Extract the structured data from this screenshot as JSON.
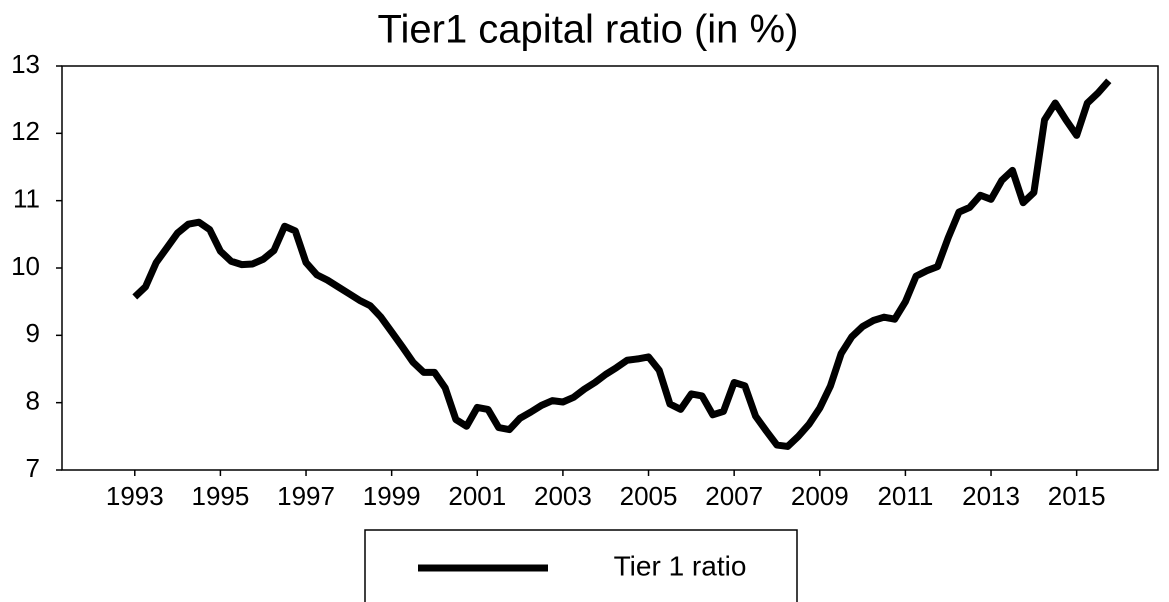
{
  "chart_data": {
    "type": "line",
    "title": "Tier1 capital ratio (in %)",
    "x": [
      1993,
      1993.25,
      1993.5,
      1993.75,
      1994,
      1994.25,
      1994.5,
      1994.75,
      1995,
      1995.25,
      1995.5,
      1995.75,
      1996,
      1996.25,
      1996.5,
      1996.75,
      1997,
      1997.25,
      1997.5,
      1997.75,
      1998,
      1998.25,
      1998.5,
      1998.75,
      1999,
      1999.25,
      1999.5,
      1999.75,
      2000,
      2000.25,
      2000.5,
      2000.75,
      2001,
      2001.25,
      2001.5,
      2001.75,
      2002,
      2002.25,
      2002.5,
      2002.75,
      2003,
      2003.25,
      2003.5,
      2003.75,
      2004,
      2004.25,
      2004.5,
      2004.75,
      2005,
      2005.25,
      2005.5,
      2005.75,
      2006,
      2006.25,
      2006.5,
      2006.75,
      2007,
      2007.25,
      2007.5,
      2007.75,
      2008,
      2008.25,
      2008.5,
      2008.75,
      2009,
      2009.25,
      2009.5,
      2009.75,
      2010,
      2010.25,
      2010.5,
      2010.75,
      2011,
      2011.25,
      2011.5,
      2011.75,
      2012,
      2012.25,
      2012.5,
      2012.75,
      2013,
      2013.25,
      2013.5,
      2013.75,
      2014,
      2014.25,
      2014.5,
      2014.75,
      2015,
      2015.25,
      2015.5,
      2015.75
    ],
    "series": [
      {
        "name": "Tier 1 ratio",
        "color": "#000000",
        "values": [
          9.57,
          9.72,
          10.08,
          10.3,
          10.52,
          10.65,
          10.68,
          10.57,
          10.25,
          10.1,
          10.05,
          10.06,
          10.13,
          10.26,
          10.62,
          10.55,
          10.08,
          9.9,
          9.82,
          9.72,
          9.62,
          9.52,
          9.44,
          9.27,
          9.05,
          8.83,
          8.6,
          8.45,
          8.45,
          8.22,
          7.75,
          7.65,
          7.93,
          7.9,
          7.63,
          7.6,
          7.77,
          7.86,
          7.96,
          8.03,
          8.01,
          8.08,
          8.2,
          8.3,
          8.42,
          8.52,
          8.63,
          8.65,
          8.68,
          8.48,
          7.98,
          7.9,
          8.13,
          8.1,
          7.82,
          7.87,
          8.3,
          8.25,
          7.8,
          7.58,
          7.37,
          7.35,
          7.5,
          7.68,
          7.92,
          8.25,
          8.73,
          8.98,
          9.13,
          9.22,
          9.27,
          9.24,
          9.5,
          9.88,
          9.96,
          10.02,
          10.45,
          10.83,
          10.9,
          11.08,
          11.02,
          11.3,
          11.45,
          10.97,
          11.12,
          12.2,
          12.45,
          12.2,
          11.97,
          12.45,
          12.6,
          12.78
        ]
      }
    ],
    "xlim": [
      1991.3,
      2016.9
    ],
    "xticks": [
      1993,
      1995,
      1997,
      1999,
      2001,
      2003,
      2005,
      2007,
      2009,
      2011,
      2013,
      2015
    ],
    "ylim": [
      7,
      13
    ],
    "yticks": [
      7,
      8,
      9,
      10,
      11,
      12,
      13
    ],
    "grid": false,
    "legend": "bottom"
  }
}
